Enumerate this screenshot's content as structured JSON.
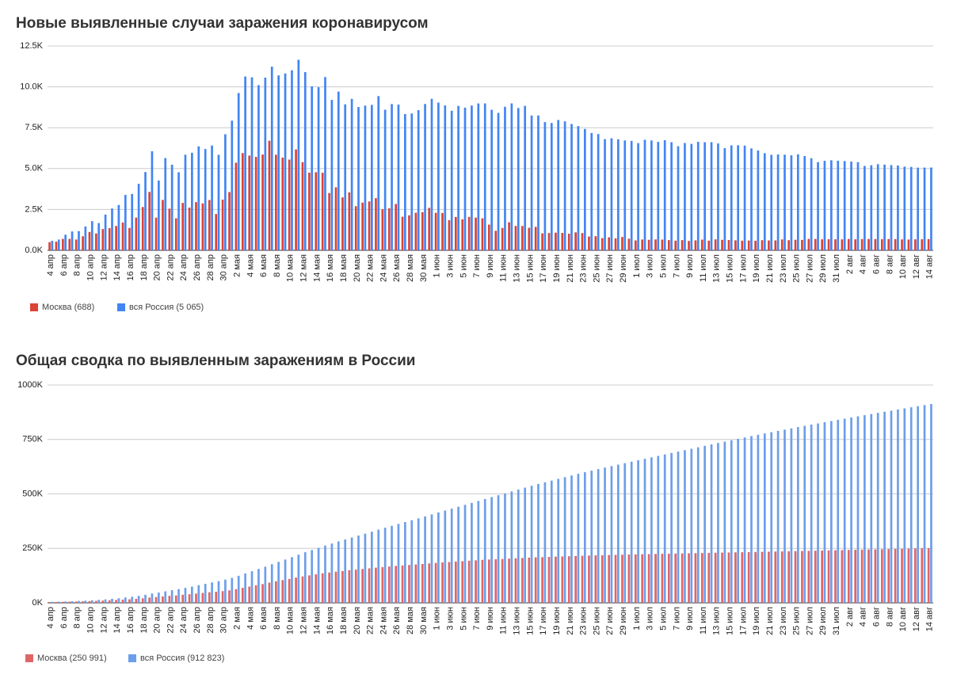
{
  "chart_data": [
    {
      "type": "bar",
      "title": "Новые выявленные случаи заражения коронавирусом",
      "categories": [
        "4 апр",
        null,
        "6 апр",
        null,
        "8 апр",
        null,
        "10 апр",
        null,
        "12 апр",
        null,
        "14 апр",
        null,
        "16 апр",
        null,
        "18 апр",
        null,
        "20 апр",
        null,
        "22 апр",
        null,
        "24 апр",
        null,
        "26 апр",
        null,
        "28 апр",
        null,
        "30 апр",
        null,
        "2 мая",
        null,
        "4 мая",
        null,
        "6 мая",
        null,
        "8 мая",
        null,
        "10 мая",
        null,
        "12 мая",
        null,
        "14 мая",
        null,
        "16 мая",
        null,
        "18 мая",
        null,
        "20 мая",
        null,
        "22 мая",
        null,
        "24 мая",
        null,
        "26 мая",
        null,
        "28 мая",
        null,
        "30 мая",
        null,
        "1 июн",
        null,
        "3 июн",
        null,
        "5 июн",
        null,
        "7 июн",
        null,
        "9 июн",
        null,
        "11 июн",
        null,
        "13 июн",
        null,
        "15 июн",
        null,
        "17 июн",
        null,
        "19 июн",
        null,
        "21 июн",
        null,
        "23 июн",
        null,
        "25 июн",
        null,
        "27 июн",
        null,
        "29 июн",
        null,
        "1 июл",
        null,
        "3 июл",
        null,
        "5 июл",
        null,
        "7 июл",
        null,
        "9 июл",
        null,
        "11 июл",
        null,
        "13 июл",
        null,
        "15 июл",
        null,
        "17 июл",
        null,
        "19 июл",
        null,
        "21 июл",
        null,
        "23 июл",
        null,
        "25 июл",
        null,
        "27 июл",
        null,
        "29 июл",
        null,
        "31 июл",
        null,
        "2 авг",
        null,
        "4 авг",
        null,
        "6 авг",
        null,
        "8 авг",
        null,
        "10 авг",
        null,
        "12 авг",
        null,
        "14 авг"
      ],
      "series": [
        {
          "name": "Москва (688)",
          "color": "#db4437",
          "values": [
            500,
            530,
            700,
            700,
            660,
            860,
            1124,
            1030,
            1300,
            1355,
            1489,
            1700,
            1370,
            2000,
            2650,
            3570,
            2000,
            3083,
            2548,
            1959,
            2899,
            2612,
            2949,
            2871,
            3075,
            2220,
            3100,
            3561,
            5358,
            5948,
            5795,
            5714,
            5858,
            6703,
            5846,
            5667,
            5551,
            6169,
            5392,
            4748,
            4775,
            4744,
            3505,
            3855,
            3238,
            3543,
            2699,
            2913,
            2988,
            3190,
            2516,
            2570,
            2830,
            2054,
            2140,
            2297,
            2332,
            2595,
            2297,
            2286,
            1842,
            2040,
            1895,
            2045,
            2001,
            1957,
            1572,
            1195,
            1369,
            1714,
            1493,
            1486,
            1378,
            1436,
            1036,
            1058,
            1080,
            1065,
            1016,
            1100,
            1057,
            845,
            864,
            746,
            794,
            733,
            813,
            712,
            605,
            660,
            645,
            664,
            655,
            624,
            591,
            625,
            574,
            609,
            655,
            589,
            669,
            641,
            632,
            611,
            591,
            601,
            588,
            620,
            604,
            606,
            667,
            619,
            645,
            637,
            697,
            694,
            671,
            678,
            674,
            670,
            695,
            673,
            687,
            693,
            689,
            683,
            691,
            686,
            666,
            660,
            673,
            675,
            688
          ]
        },
        {
          "name": "вся Россия (5 065)",
          "color": "#4285f4",
          "values": [
            582,
            658,
            954,
            1154,
            1175,
            1459,
            1786,
            1667,
            2186,
            2558,
            2774,
            3388,
            3448,
            4070,
            4785,
            6060,
            4268,
            5642,
            5236,
            4774,
            5849,
            5966,
            6361,
            6198,
            6411,
            5841,
            7099,
            7933,
            9623,
            10633,
            10581,
            10102,
            10559,
            11231,
            10699,
            10817,
            11012,
            11656,
            10899,
            10028,
            9974,
            10598,
            9200,
            9709,
            8926,
            9263,
            8764,
            8849,
            8894,
            9434,
            8599,
            8946,
            8915,
            8338,
            8371,
            8572,
            8952,
            9268,
            9035,
            8863,
            8536,
            8831,
            8726,
            8855,
            8984,
            8985,
            8595,
            8404,
            8779,
            8987,
            8706,
            8835,
            8246,
            8248,
            7843,
            7790,
            7972,
            7889,
            7728,
            7600,
            7425,
            7176,
            7113,
            6800,
            6852,
            6791,
            6719,
            6693,
            6556,
            6760,
            6718,
            6632,
            6736,
            6611,
            6368,
            6562,
            6509,
            6635,
            6611,
            6615,
            6537,
            6248,
            6422,
            6428,
            6406,
            6234,
            6109,
            5940,
            5842,
            5862,
            5848,
            5811,
            5871,
            5765,
            5635,
            5395,
            5475,
            5509,
            5482,
            5462,
            5427,
            5394,
            5159,
            5204,
            5267,
            5241,
            5212,
            5189,
            5118,
            5102,
            5057,
            5061,
            5065
          ]
        }
      ],
      "ylim": [
        0,
        12500
      ],
      "yticks": [
        {
          "value": 0,
          "label": "0.0K"
        },
        {
          "value": 2500,
          "label": "2.5K"
        },
        {
          "value": 5000,
          "label": "5.0K"
        },
        {
          "value": 7500,
          "label": "7.5K"
        },
        {
          "value": 10000,
          "label": "10.0K"
        },
        {
          "value": 12500,
          "label": "12.5K"
        }
      ],
      "grid": true
    },
    {
      "type": "bar",
      "title": "Общая сводка по выявленным заражениям в России",
      "categories": [
        "4 апр",
        null,
        "6 апр",
        null,
        "8 апр",
        null,
        "10 апр",
        null,
        "12 апр",
        null,
        "14 апр",
        null,
        "16 апр",
        null,
        "18 апр",
        null,
        "20 апр",
        null,
        "22 апр",
        null,
        "24 апр",
        null,
        "26 апр",
        null,
        "28 апр",
        null,
        "30 апр",
        null,
        "2 мая",
        null,
        "4 мая",
        null,
        "6 мая",
        null,
        "8 мая",
        null,
        "10 мая",
        null,
        "12 мая",
        null,
        "14 мая",
        null,
        "16 мая",
        null,
        "18 мая",
        null,
        "20 мая",
        null,
        "22 мая",
        null,
        "24 мая",
        null,
        "26 мая",
        null,
        "28 мая",
        null,
        "30 мая",
        null,
        "1 июн",
        null,
        "3 июн",
        null,
        "5 июн",
        null,
        "7 июн",
        null,
        "9 июн",
        null,
        "11 июн",
        null,
        "13 июн",
        null,
        "15 июн",
        null,
        "17 июн",
        null,
        "19 июн",
        null,
        "21 июн",
        null,
        "23 июн",
        null,
        "25 июн",
        null,
        "27 июн",
        null,
        "29 июн",
        null,
        "1 июл",
        null,
        "3 июл",
        null,
        "5 июл",
        null,
        "7 июл",
        null,
        "9 июл",
        null,
        "11 июл",
        null,
        "13 июл",
        null,
        "15 июл",
        null,
        "17 июл",
        null,
        "19 июл",
        null,
        "21 июл",
        null,
        "23 июл",
        null,
        "25 июл",
        null,
        "27 июл",
        null,
        "29 июл",
        null,
        "31 июл",
        null,
        "2 авг",
        null,
        "4 авг",
        null,
        "6 авг",
        null,
        "8 авг",
        null,
        "10 авг",
        null,
        "12 авг",
        null,
        "14 авг"
      ],
      "series": [
        {
          "name": "Москва (250 991)",
          "color": "#e06666",
          "values": [
            3400,
            3900,
            4600,
            5300,
            6000,
            6800,
            8000,
            9000,
            10300,
            11700,
            13200,
            14800,
            16200,
            18200,
            20800,
            24300,
            26400,
            29400,
            32000,
            34000,
            36900,
            39500,
            42500,
            45400,
            48400,
            50600,
            53700,
            57300,
            62700,
            68600,
            74400,
            80100,
            86000,
            92700,
            98500,
            104200,
            109700,
            115900,
            121300,
            126000,
            130800,
            135600,
            139100,
            142900,
            146100,
            149700,
            152400,
            155300,
            158300,
            161500,
            164000,
            166600,
            169400,
            171400,
            173600,
            175900,
            178200,
            180800,
            183100,
            185400,
            187200,
            189300,
            191200,
            193200,
            195200,
            197200,
            198700,
            199900,
            201300,
            203000,
            204500,
            206000,
            207400,
            208800,
            209800,
            210900,
            212000,
            213000,
            214000,
            215100,
            216200,
            217000,
            217900,
            218600,
            219400,
            220200,
            221000,
            221700,
            222300,
            223000,
            223600,
            224300,
            224900,
            225600,
            226200,
            226800,
            227400,
            228000,
            228600,
            229200,
            229900,
            230500,
            231100,
            231800,
            232300,
            232900,
            233500,
            234100,
            234700,
            235400,
            236000,
            236600,
            237300,
            237900,
            238600,
            239300,
            240000,
            240700,
            241300,
            242000,
            242700,
            243400,
            244100,
            244800,
            245400,
            246100,
            246800,
            247500,
            248200,
            248900,
            249600,
            250300,
            250991
          ]
        },
        {
          "name": "вся Россия (912 823)",
          "color": "#6d9eeb",
          "values": [
            4731,
            5400,
            6300,
            7500,
            8700,
            10100,
            11900,
            13600,
            15800,
            18300,
            21100,
            24500,
            27900,
            32000,
            36800,
            42900,
            47100,
            52800,
            58000,
            62800,
            68600,
            74600,
            81000,
            87100,
            93600,
            99400,
            106500,
            114400,
            124100,
            134700,
            145300,
            155400,
            165900,
            177200,
            187900,
            198700,
            209700,
            221300,
            232200,
            242300,
            252200,
            262800,
            272000,
            281800,
            290700,
            299900,
            308700,
            317600,
            326400,
            335900,
            344500,
            353400,
            362300,
            370700,
            379100,
            387600,
            396600,
            405800,
            414900,
            423700,
            432300,
            441100,
            449800,
            458700,
            467700,
            476700,
            485300,
            493700,
            502400,
            511400,
            520100,
            528900,
            537200,
            545500,
            553300,
            561100,
            569100,
            576900,
            584700,
            592300,
            599700,
            606900,
            614000,
            620800,
            627600,
            634400,
            641200,
            647800,
            654400,
            661200,
            667900,
            674500,
            681300,
            687900,
            694200,
            700800,
            707300,
            713900,
            720500,
            727200,
            733700,
            739900,
            746400,
            752800,
            759200,
            765400,
            771500,
            777500,
            783300,
            789200,
            795000,
            800800,
            806700,
            812500,
            818100,
            823500,
            829000,
            834500,
            840000,
            845400,
            850900,
            856300,
            861400,
            866600,
            871900,
            877100,
            882300,
            887500,
            892700,
            897600,
            902700,
            907800,
            912823
          ]
        }
      ],
      "ylim": [
        0,
        1000000
      ],
      "yticks": [
        {
          "value": 0,
          "label": "0K"
        },
        {
          "value": 250000,
          "label": "250K"
        },
        {
          "value": 500000,
          "label": "500K"
        },
        {
          "value": 750000,
          "label": "750K"
        },
        {
          "value": 1000000,
          "label": "1000K"
        }
      ],
      "grid": true
    }
  ]
}
